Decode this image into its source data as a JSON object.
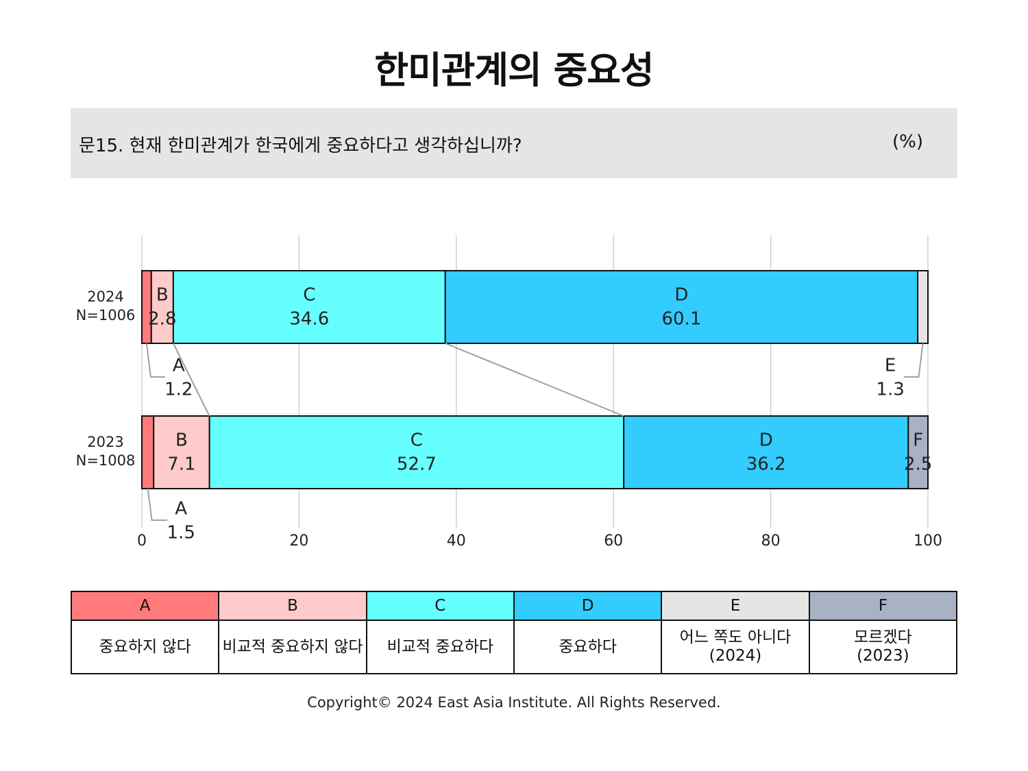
{
  "title": "한미관계의 중요성",
  "question": "문15. 현재 한미관계가 한국에게 중요하다고 생각하십니까?",
  "unit": "(%)",
  "chart_data": {
    "type": "bar",
    "orientation": "horizontal-stacked",
    "xlim": [
      0,
      100
    ],
    "x_ticks": [
      "0",
      "20",
      "40",
      "60",
      "80",
      "100"
    ],
    "grid": true,
    "rows": [
      {
        "year": "2024",
        "n": "N=1006",
        "segments": [
          {
            "key": "A",
            "value": 1.2,
            "label": "1.2"
          },
          {
            "key": "B",
            "value": 2.8,
            "label": "2.8"
          },
          {
            "key": "C",
            "value": 34.6,
            "label": "34.6"
          },
          {
            "key": "D",
            "value": 60.1,
            "label": "60.1"
          },
          {
            "key": "E",
            "value": 1.3,
            "label": "1.3"
          }
        ]
      },
      {
        "year": "2023",
        "n": "N=1008",
        "segments": [
          {
            "key": "A",
            "value": 1.5,
            "label": "1.5"
          },
          {
            "key": "B",
            "value": 7.1,
            "label": "7.1"
          },
          {
            "key": "C",
            "value": 52.7,
            "label": "52.7"
          },
          {
            "key": "D",
            "value": 36.2,
            "label": "36.2"
          },
          {
            "key": "F",
            "value": 2.5,
            "label": "2.5"
          }
        ]
      }
    ]
  },
  "legend": [
    {
      "key": "A",
      "label": "중요하지 않다",
      "color": "#ff7b7b"
    },
    {
      "key": "B",
      "label": "비교적 중요하지 않다",
      "color": "#ffcaca"
    },
    {
      "key": "C",
      "label": "비교적 중요하다",
      "color": "#66ffff"
    },
    {
      "key": "D",
      "label": "중요하다",
      "color": "#33ccff"
    },
    {
      "key": "E",
      "label": "어느 쪽도 아니다\n(2024)",
      "color": "#e6e4e5"
    },
    {
      "key": "F",
      "label": "모르겠다\n(2023)",
      "color": "#a8b2c4"
    }
  ],
  "copyright": "Copyright© 2024 East Asia Institute. All Rights Reserved."
}
